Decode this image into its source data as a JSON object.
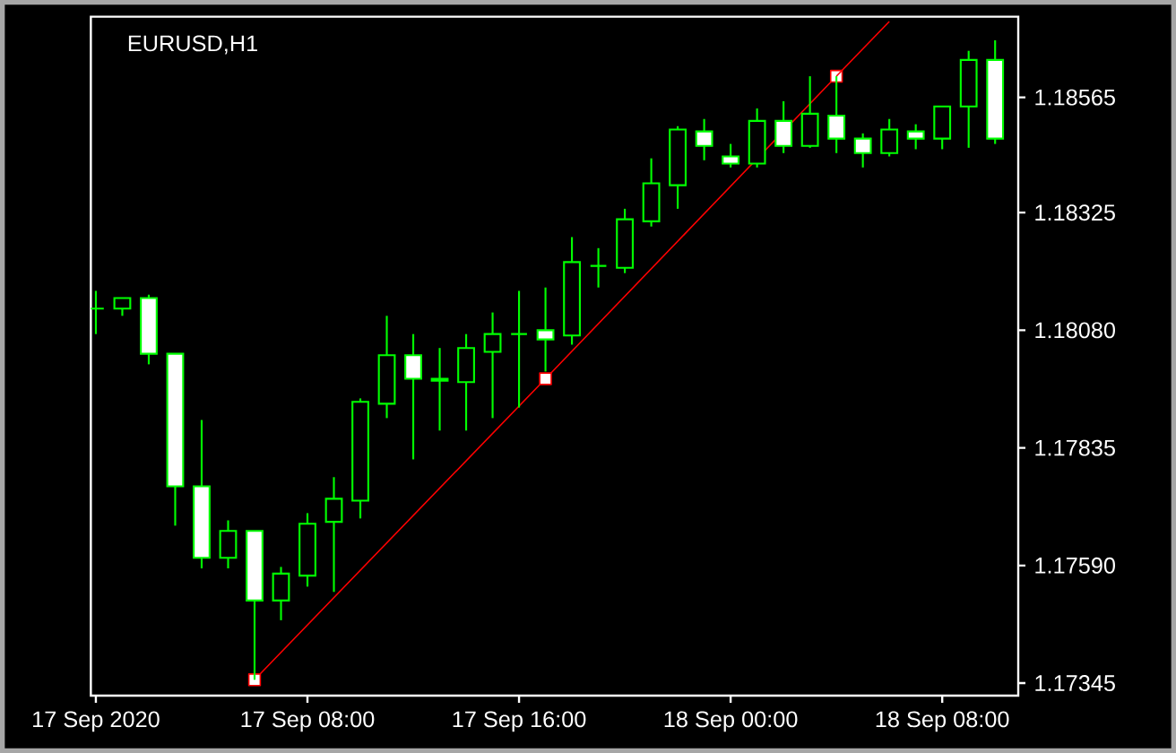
{
  "chart_data": {
    "type": "candlestick",
    "title": "EURUSD,H1",
    "color": "#00ff00",
    "categories": [
      "17 Sep 2020",
      null,
      null,
      null,
      null,
      null,
      null,
      null,
      "17 Sep 08:00",
      null,
      null,
      null,
      null,
      null,
      null,
      null,
      "17 Sep 16:00",
      null,
      null,
      null,
      null,
      null,
      null,
      null,
      "18 Sep 00:00",
      null,
      null,
      null,
      null,
      null,
      null,
      null,
      "18 Sep 08:00",
      null,
      null
    ],
    "ohlc": [
      [
        1.18125,
        1.18162,
        1.18072,
        1.18125
      ],
      [
        1.18125,
        1.18147,
        1.1811,
        1.18147
      ],
      [
        1.18147,
        1.18154,
        1.18009,
        1.18031
      ],
      [
        1.18031,
        1.18031,
        1.17673,
        1.17755
      ],
      [
        1.17755,
        1.17893,
        1.17584,
        1.17606
      ],
      [
        1.17606,
        1.17684,
        1.17584,
        1.17662
      ],
      [
        1.17662,
        1.17662,
        1.17352,
        1.17517
      ],
      [
        1.17517,
        1.17587,
        1.17476,
        1.17573
      ],
      [
        1.17569,
        1.17699,
        1.17546,
        1.17677
      ],
      [
        1.17681,
        1.17774,
        1.17535,
        1.17729
      ],
      [
        1.17725,
        1.17938,
        1.17688,
        1.17931
      ],
      [
        1.17927,
        1.1811,
        1.17897,
        1.18028
      ],
      [
        1.18028,
        1.18072,
        1.17811,
        1.17979
      ],
      [
        1.17979,
        1.18043,
        1.17871,
        1.17975
      ],
      [
        1.17972,
        1.18072,
        1.17871,
        1.18043
      ],
      [
        1.18035,
        1.18117,
        1.17897,
        1.18072
      ],
      [
        1.18072,
        1.18162,
        1.17919,
        1.18072
      ],
      [
        1.1808,
        1.18169,
        1.17994,
        1.18061
      ],
      [
        1.18069,
        1.18274,
        1.1805,
        1.18222
      ],
      [
        1.18214,
        1.18251,
        1.18169,
        1.18214
      ],
      [
        1.1821,
        1.18333,
        1.18199,
        1.18311
      ],
      [
        1.18307,
        1.18438,
        1.18296,
        1.18386
      ],
      [
        1.18382,
        1.18505,
        1.18333,
        1.18498
      ],
      [
        1.18494,
        1.1852,
        1.18434,
        1.18464
      ],
      [
        1.18442,
        1.18468,
        1.18419,
        1.18427
      ],
      [
        1.18427,
        1.18542,
        1.18419,
        1.18516
      ],
      [
        1.18516,
        1.18557,
        1.18449,
        1.18464
      ],
      [
        1.18464,
        1.18609,
        1.1846,
        1.18531
      ],
      [
        1.18527,
        1.18609,
        1.18449,
        1.18479
      ],
      [
        1.18479,
        1.1849,
        1.18419,
        1.18449
      ],
      [
        1.18449,
        1.1852,
        1.18442,
        1.18498
      ],
      [
        1.18494,
        1.18509,
        1.18457,
        1.18479
      ],
      [
        1.18479,
        1.18546,
        1.18457,
        1.18546
      ],
      [
        1.18546,
        1.18662,
        1.1846,
        1.18643
      ],
      [
        1.18643,
        1.18684,
        1.18468,
        1.18479
      ]
    ],
    "series": [
      {
        "type": "line",
        "color": "#ff0000",
        "marker": "square",
        "values": [
          null,
          null,
          null,
          null,
          null,
          null,
          1.17352,
          null,
          null,
          null,
          null,
          null,
          null,
          null,
          null,
          null,
          null,
          1.17979,
          null,
          null,
          null,
          null,
          null,
          null,
          null,
          null,
          null,
          null,
          1.18609,
          null,
          null,
          null,
          null,
          null,
          null
        ]
      },
      {
        "type": "line",
        "color": "#ff0000",
        "values": [
          null,
          null,
          null,
          null,
          null,
          null,
          null,
          null,
          null,
          null,
          null,
          null,
          null,
          null,
          null,
          null,
          null,
          null,
          null,
          null,
          null,
          null,
          null,
          null,
          null,
          null,
          null,
          null,
          1.18609,
          null,
          1.18723,
          null,
          null,
          null,
          null
        ]
      }
    ],
    "ylim": [
      1.17319,
      1.18733
    ],
    "yticks": [
      {
        "value": 1.17345,
        "label": "1.17345"
      },
      {
        "value": 1.1759,
        "label": "1.17590"
      },
      {
        "value": 1.17835,
        "label": "1.17835"
      },
      {
        "value": 1.1808,
        "label": "1.18080"
      },
      {
        "value": 1.18325,
        "label": "1.18325"
      },
      {
        "value": 1.18565,
        "label": "1.18565"
      }
    ]
  }
}
